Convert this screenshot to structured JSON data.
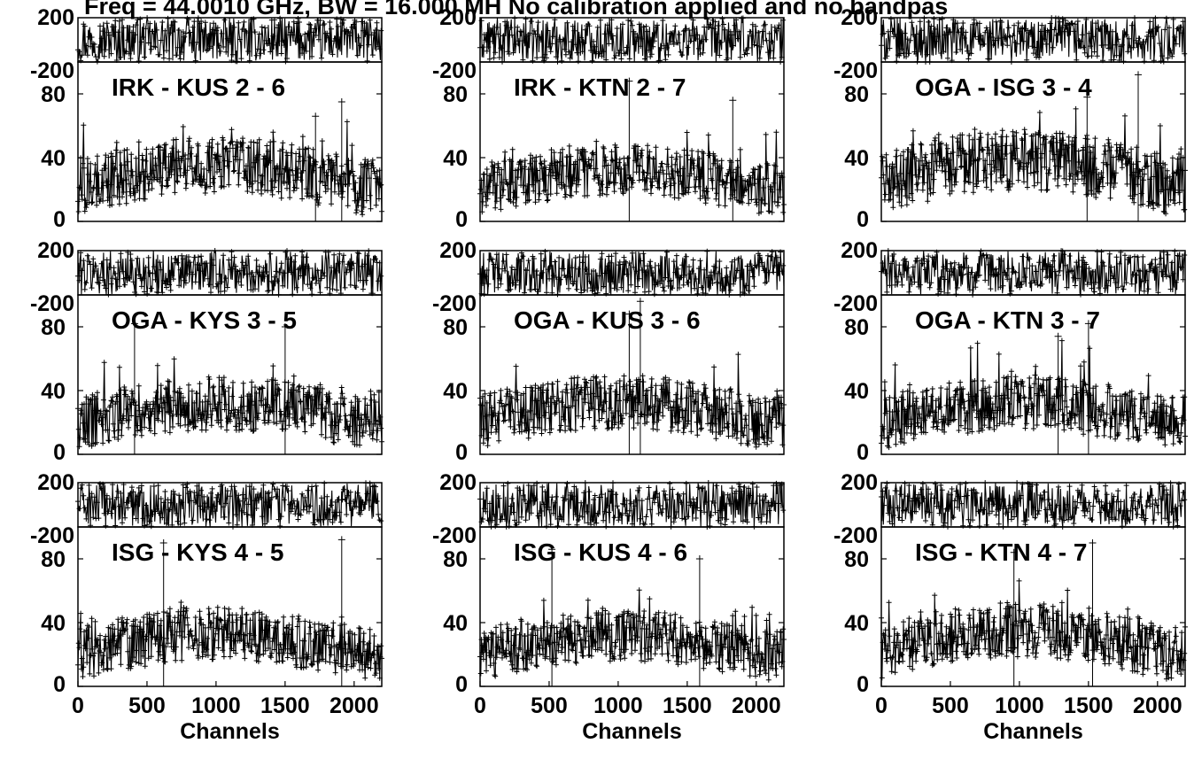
{
  "figure_title": "Freq = 44.0010 GHz, BW = 16.000 MH   No calibration applied and no bandpas",
  "chart_data": [
    {
      "type": "scatter",
      "panel_label": "IRK - KUS   2 - 6",
      "xlabel": "",
      "x_range": [
        0,
        2200
      ],
      "phase_range": [
        -200,
        200
      ],
      "amp_range": [
        0,
        100
      ],
      "amp_ticks": [
        0,
        40,
        80
      ],
      "phase_ticks": [
        -200,
        200
      ],
      "x_ticks": [],
      "amp_level": 30,
      "amp_spread": 22,
      "peaks": [
        {
          "x": 1720,
          "y": 66
        },
        {
          "x": 1910,
          "y": 75
        }
      ]
    },
    {
      "type": "scatter",
      "panel_label": "IRK - KTN    2 - 7",
      "xlabel": "",
      "x_range": [
        0,
        2200
      ],
      "phase_range": [
        -200,
        200
      ],
      "amp_range": [
        0,
        100
      ],
      "amp_ticks": [
        0,
        40,
        80
      ],
      "phase_ticks": [
        -200,
        200
      ],
      "x_ticks": [],
      "amp_level": 28,
      "amp_spread": 20,
      "peaks": [
        {
          "x": 1080,
          "y": 88
        },
        {
          "x": 1830,
          "y": 76
        }
      ]
    },
    {
      "type": "scatter",
      "panel_label": "OGA - ISG   3 - 4",
      "xlabel": "",
      "x_range": [
        0,
        2200
      ],
      "phase_range": [
        -200,
        200
      ],
      "amp_range": [
        0,
        100
      ],
      "amp_ticks": [
        0,
        40,
        80
      ],
      "phase_ticks": [
        -200,
        200
      ],
      "x_ticks": [],
      "amp_level": 33,
      "amp_spread": 24,
      "peaks": [
        {
          "x": 1860,
          "y": 92
        },
        {
          "x": 1490,
          "y": 78
        }
      ]
    },
    {
      "type": "scatter",
      "panel_label": "OGA - KYS  3 - 5",
      "xlabel": "",
      "x_range": [
        0,
        2200
      ],
      "phase_range": [
        -200,
        200
      ],
      "amp_range": [
        0,
        100
      ],
      "amp_ticks": [
        0,
        40,
        80
      ],
      "phase_ticks": [
        -200,
        200
      ],
      "x_ticks": [],
      "amp_level": 27,
      "amp_spread": 21,
      "peaks": [
        {
          "x": 410,
          "y": 82
        },
        {
          "x": 1500,
          "y": 80
        }
      ]
    },
    {
      "type": "scatter",
      "panel_label": "OGA - KUS  3 - 6",
      "xlabel": "",
      "x_range": [
        0,
        2200
      ],
      "phase_range": [
        -200,
        200
      ],
      "amp_range": [
        0,
        100
      ],
      "amp_ticks": [
        0,
        40,
        80
      ],
      "phase_ticks": [
        -200,
        200
      ],
      "x_ticks": [],
      "amp_level": 28,
      "amp_spread": 21,
      "peaks": [
        {
          "x": 1160,
          "y": 96
        },
        {
          "x": 1080,
          "y": 88
        }
      ]
    },
    {
      "type": "scatter",
      "panel_label": "OGA - KTN  3 - 7",
      "xlabel": "",
      "x_range": [
        0,
        2200
      ],
      "phase_range": [
        -200,
        200
      ],
      "amp_range": [
        0,
        100
      ],
      "amp_ticks": [
        0,
        40,
        80
      ],
      "phase_ticks": [
        -200,
        200
      ],
      "x_ticks": [],
      "amp_level": 27,
      "amp_spread": 21,
      "peaks": [
        {
          "x": 1500,
          "y": 82
        },
        {
          "x": 1280,
          "y": 74
        }
      ]
    },
    {
      "type": "scatter",
      "panel_label": "ISG - KYS    4 - 5",
      "xlabel": "Channels",
      "x_range": [
        0,
        2200
      ],
      "phase_range": [
        -200,
        200
      ],
      "amp_range": [
        0,
        100
      ],
      "amp_ticks": [
        0,
        40,
        80
      ],
      "phase_ticks": [
        -200,
        200
      ],
      "x_ticks": [
        0,
        500,
        1000,
        1500,
        2000
      ],
      "amp_level": 28,
      "amp_spread": 21,
      "peaks": [
        {
          "x": 1910,
          "y": 92
        },
        {
          "x": 620,
          "y": 90
        }
      ]
    },
    {
      "type": "scatter",
      "panel_label": "ISG - KUS    4 - 6",
      "xlabel": "Channels",
      "x_range": [
        0,
        2200
      ],
      "phase_range": [
        -200,
        200
      ],
      "amp_range": [
        0,
        100
      ],
      "amp_ticks": [
        0,
        40,
        80
      ],
      "phase_ticks": [
        -200,
        200
      ],
      "x_ticks": [
        0,
        500,
        1000,
        1500,
        2000
      ],
      "amp_level": 27,
      "amp_spread": 20,
      "peaks": [
        {
          "x": 520,
          "y": 86
        },
        {
          "x": 1590,
          "y": 80
        }
      ]
    },
    {
      "type": "scatter",
      "panel_label": "ISG - KTN    4 - 7",
      "xlabel": "Channels",
      "x_range": [
        0,
        2200
      ],
      "phase_range": [
        -200,
        200
      ],
      "amp_range": [
        0,
        100
      ],
      "amp_ticks": [
        0,
        40,
        80
      ],
      "phase_ticks": [
        -200,
        200
      ],
      "x_ticks": [
        0,
        500,
        1000,
        1500,
        2000
      ],
      "amp_level": 30,
      "amp_spread": 22,
      "peaks": [
        {
          "x": 1530,
          "y": 90
        },
        {
          "x": 960,
          "y": 84
        }
      ]
    }
  ]
}
